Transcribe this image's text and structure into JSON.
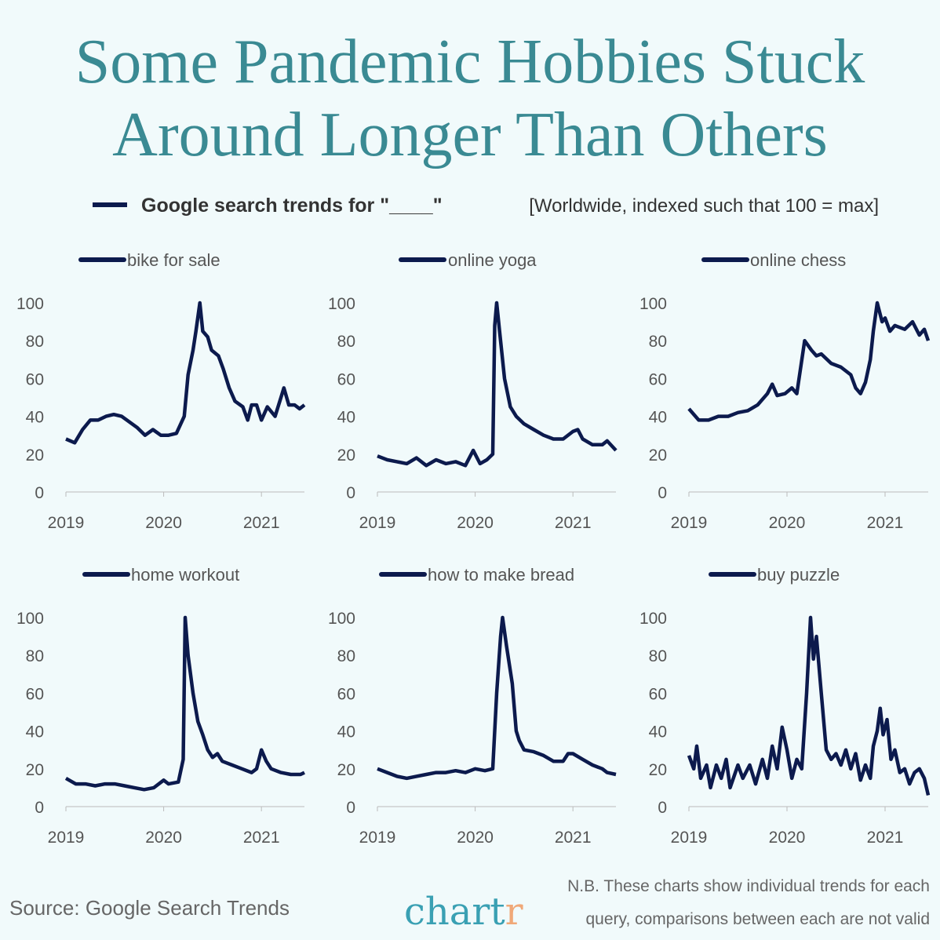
{
  "title_lines": [
    "Some Pandemic Hobbies Stuck",
    "Around Longer Than Others"
  ],
  "legend": {
    "main": "Google search trends for \"____\"",
    "note": "[Worldwide, indexed such that 100 = max]"
  },
  "colors": {
    "title": "#3a8a93",
    "line": "#0c1a4d",
    "background": "#f1fafb",
    "logo_main": "#3aa0b3",
    "logo_accent": "#f0a878"
  },
  "footer": {
    "source": "Source: Google Search Trends",
    "logo": "chart",
    "logo_accent": "r",
    "note_lines": [
      "N.B. These charts show individual trends for each",
      "query, comparisons between each are not valid"
    ]
  },
  "chart_data": [
    {
      "type": "line",
      "name": "bike for sale",
      "xlim": [
        2019,
        2021.44
      ],
      "ylim": [
        0,
        100
      ],
      "xticks": [
        2019,
        2020,
        2021
      ],
      "yticks": [
        0,
        20,
        40,
        60,
        80,
        100
      ],
      "x": [
        2019,
        2019.09,
        2019.17,
        2019.25,
        2019.33,
        2019.41,
        2019.49,
        2019.57,
        2019.65,
        2019.73,
        2019.81,
        2019.89,
        2019.97,
        2020.05,
        2020.13,
        2020.21,
        2020.25,
        2020.3,
        2020.33,
        2020.37,
        2020.4,
        2020.45,
        2020.49,
        2020.56,
        2020.61,
        2020.67,
        2020.73,
        2020.81,
        2020.86,
        2020.9,
        2020.95,
        2021,
        2021.06,
        2021.14,
        2021.2,
        2021.23,
        2021.28,
        2021.34,
        2021.39,
        2021.44
      ],
      "y": [
        28,
        26,
        33,
        38,
        38,
        40,
        41,
        40,
        37,
        34,
        30,
        33,
        30,
        30,
        31,
        40,
        62,
        75,
        85,
        100,
        85,
        82,
        75,
        72,
        65,
        55,
        48,
        45,
        38,
        46,
        46,
        38,
        45,
        40,
        50,
        55,
        46,
        46,
        44,
        46
      ]
    },
    {
      "type": "line",
      "name": "online yoga",
      "xlim": [
        2019,
        2021.44
      ],
      "ylim": [
        0,
        100
      ],
      "xticks": [
        2019,
        2020,
        2021
      ],
      "yticks": [
        0,
        20,
        40,
        60,
        80,
        100
      ],
      "x": [
        2019,
        2019.1,
        2019.2,
        2019.3,
        2019.4,
        2019.5,
        2019.6,
        2019.7,
        2019.8,
        2019.9,
        2019.98,
        2020.05,
        2020.12,
        2020.18,
        2020.2,
        2020.22,
        2020.25,
        2020.3,
        2020.36,
        2020.42,
        2020.5,
        2020.6,
        2020.7,
        2020.8,
        2020.9,
        2021,
        2021.05,
        2021.1,
        2021.2,
        2021.3,
        2021.35,
        2021.44
      ],
      "y": [
        19,
        17,
        16,
        15,
        18,
        14,
        17,
        15,
        16,
        14,
        22,
        15,
        17,
        20,
        88,
        100,
        85,
        60,
        45,
        40,
        36,
        33,
        30,
        28,
        28,
        32,
        33,
        28,
        25,
        25,
        27,
        22
      ]
    },
    {
      "type": "line",
      "name": "online chess",
      "xlim": [
        2019,
        2021.44
      ],
      "ylim": [
        0,
        100
      ],
      "xticks": [
        2019,
        2020,
        2021
      ],
      "yticks": [
        0,
        20,
        40,
        60,
        80,
        100
      ],
      "x": [
        2019,
        2019.1,
        2019.2,
        2019.3,
        2019.4,
        2019.5,
        2019.6,
        2019.7,
        2019.8,
        2019.85,
        2019.9,
        2019.98,
        2020.05,
        2020.1,
        2020.18,
        2020.25,
        2020.3,
        2020.35,
        2020.45,
        2020.55,
        2020.65,
        2020.7,
        2020.75,
        2020.8,
        2020.85,
        2020.88,
        2020.92,
        2020.97,
        2021,
        2021.05,
        2021.1,
        2021.2,
        2021.28,
        2021.35,
        2021.4,
        2021.44
      ],
      "y": [
        44,
        38,
        38,
        40,
        40,
        42,
        43,
        46,
        52,
        57,
        51,
        52,
        55,
        52,
        80,
        75,
        72,
        73,
        68,
        66,
        62,
        55,
        52,
        58,
        70,
        85,
        100,
        90,
        92,
        85,
        88,
        86,
        90,
        83,
        86,
        80
      ]
    },
    {
      "type": "line",
      "name": "home workout",
      "xlim": [
        2019,
        2021.44
      ],
      "ylim": [
        0,
        100
      ],
      "xticks": [
        2019,
        2020,
        2021
      ],
      "yticks": [
        0,
        20,
        40,
        60,
        80,
        100
      ],
      "x": [
        2019,
        2019.1,
        2019.2,
        2019.3,
        2019.4,
        2019.5,
        2019.6,
        2019.7,
        2019.8,
        2019.9,
        2020,
        2020.05,
        2020.15,
        2020.2,
        2020.22,
        2020.25,
        2020.3,
        2020.35,
        2020.4,
        2020.45,
        2020.5,
        2020.55,
        2020.6,
        2020.7,
        2020.8,
        2020.9,
        2020.95,
        2021,
        2021.05,
        2021.1,
        2021.2,
        2021.3,
        2021.4,
        2021.44
      ],
      "y": [
        15,
        12,
        12,
        11,
        12,
        12,
        11,
        10,
        9,
        10,
        14,
        12,
        13,
        25,
        100,
        80,
        60,
        45,
        38,
        30,
        26,
        28,
        24,
        22,
        20,
        18,
        20,
        30,
        24,
        20,
        18,
        17,
        17,
        18
      ]
    },
    {
      "type": "line",
      "name": "how to make bread",
      "xlim": [
        2019,
        2021.44
      ],
      "ylim": [
        0,
        100
      ],
      "xticks": [
        2019,
        2020,
        2021
      ],
      "yticks": [
        0,
        20,
        40,
        60,
        80,
        100
      ],
      "x": [
        2019,
        2019.1,
        2019.2,
        2019.3,
        2019.4,
        2019.5,
        2019.6,
        2019.7,
        2019.8,
        2019.9,
        2020,
        2020.1,
        2020.18,
        2020.22,
        2020.26,
        2020.28,
        2020.32,
        2020.38,
        2020.42,
        2020.45,
        2020.5,
        2020.6,
        2020.7,
        2020.8,
        2020.9,
        2020.95,
        2021,
        2021.1,
        2021.2,
        2021.3,
        2021.35,
        2021.44
      ],
      "y": [
        20,
        18,
        16,
        15,
        16,
        17,
        18,
        18,
        19,
        18,
        20,
        19,
        20,
        60,
        90,
        100,
        85,
        65,
        40,
        35,
        30,
        29,
        27,
        24,
        24,
        28,
        28,
        25,
        22,
        20,
        18,
        17
      ]
    },
    {
      "type": "line",
      "name": "buy puzzle",
      "xlim": [
        2019,
        2021.44
      ],
      "ylim": [
        0,
        100
      ],
      "xticks": [
        2019,
        2020,
        2021
      ],
      "yticks": [
        0,
        20,
        40,
        60,
        80,
        100
      ],
      "x": [
        2019,
        2019.05,
        2019.08,
        2019.12,
        2019.18,
        2019.22,
        2019.28,
        2019.33,
        2019.38,
        2019.42,
        2019.5,
        2019.55,
        2019.62,
        2019.68,
        2019.75,
        2019.8,
        2019.85,
        2019.9,
        2019.95,
        2020,
        2020.05,
        2020.1,
        2020.15,
        2020.2,
        2020.24,
        2020.27,
        2020.3,
        2020.35,
        2020.4,
        2020.45,
        2020.5,
        2020.55,
        2020.6,
        2020.65,
        2020.7,
        2020.75,
        2020.8,
        2020.85,
        2020.88,
        2020.92,
        2020.95,
        2020.98,
        2021.02,
        2021.06,
        2021.1,
        2021.15,
        2021.2,
        2021.25,
        2021.3,
        2021.35,
        2021.4,
        2021.44
      ],
      "y": [
        27,
        20,
        32,
        15,
        22,
        10,
        22,
        15,
        25,
        10,
        22,
        15,
        22,
        12,
        25,
        15,
        32,
        20,
        42,
        30,
        15,
        25,
        20,
        60,
        100,
        78,
        90,
        60,
        30,
        25,
        28,
        22,
        30,
        20,
        28,
        14,
        22,
        15,
        32,
        40,
        52,
        38,
        46,
        25,
        30,
        18,
        20,
        12,
        18,
        20,
        15,
        6
      ]
    }
  ]
}
